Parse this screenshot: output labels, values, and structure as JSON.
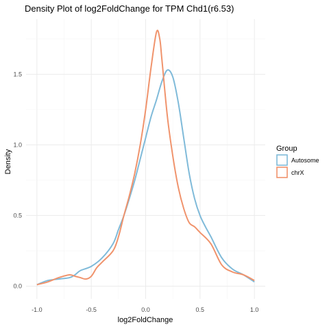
{
  "chart_data": {
    "type": "line",
    "title": "Density Plot of log2FoldChange for TPM Chd1(r6.53)",
    "xlabel": "log2FoldChange",
    "ylabel": "Density",
    "xlim": [
      -1.0,
      1.0
    ],
    "ylim": [
      0.0,
      1.8
    ],
    "xticks": [
      "-1.0",
      "-0.5",
      "0.0",
      "0.5",
      "1.0"
    ],
    "yticks": [
      "0.0",
      "0.5",
      "1.0",
      "1.5"
    ],
    "grid": true,
    "legend": {
      "title": "Group",
      "position": "right"
    },
    "series": [
      {
        "name": "Autosome",
        "color": "#7fbad9",
        "points": [
          [
            -1.0,
            0.01
          ],
          [
            -0.9,
            0.04
          ],
          [
            -0.8,
            0.05
          ],
          [
            -0.7,
            0.06
          ],
          [
            -0.65,
            0.08
          ],
          [
            -0.6,
            0.11
          ],
          [
            -0.5,
            0.14
          ],
          [
            -0.4,
            0.2
          ],
          [
            -0.3,
            0.3
          ],
          [
            -0.25,
            0.4
          ],
          [
            -0.2,
            0.5
          ],
          [
            -0.15,
            0.62
          ],
          [
            -0.1,
            0.75
          ],
          [
            -0.05,
            0.9
          ],
          [
            0.0,
            1.05
          ],
          [
            0.05,
            1.2
          ],
          [
            0.1,
            1.32
          ],
          [
            0.15,
            1.45
          ],
          [
            0.2,
            1.53
          ],
          [
            0.25,
            1.48
          ],
          [
            0.3,
            1.3
          ],
          [
            0.35,
            1.05
          ],
          [
            0.4,
            0.8
          ],
          [
            0.45,
            0.62
          ],
          [
            0.5,
            0.5
          ],
          [
            0.55,
            0.42
          ],
          [
            0.6,
            0.35
          ],
          [
            0.7,
            0.2
          ],
          [
            0.8,
            0.12
          ],
          [
            0.9,
            0.08
          ],
          [
            1.0,
            0.03
          ]
        ]
      },
      {
        "name": "chrX",
        "color": "#f0936c",
        "points": [
          [
            -1.0,
            0.01
          ],
          [
            -0.9,
            0.03
          ],
          [
            -0.8,
            0.06
          ],
          [
            -0.7,
            0.08
          ],
          [
            -0.65,
            0.07
          ],
          [
            -0.6,
            0.06
          ],
          [
            -0.55,
            0.05
          ],
          [
            -0.5,
            0.07
          ],
          [
            -0.45,
            0.13
          ],
          [
            -0.4,
            0.17
          ],
          [
            -0.3,
            0.25
          ],
          [
            -0.25,
            0.35
          ],
          [
            -0.2,
            0.5
          ],
          [
            -0.15,
            0.64
          ],
          [
            -0.1,
            0.8
          ],
          [
            -0.05,
            1.0
          ],
          [
            0.0,
            1.25
          ],
          [
            0.05,
            1.55
          ],
          [
            0.1,
            1.8
          ],
          [
            0.13,
            1.75
          ],
          [
            0.15,
            1.6
          ],
          [
            0.2,
            1.2
          ],
          [
            0.25,
            0.92
          ],
          [
            0.3,
            0.7
          ],
          [
            0.35,
            0.55
          ],
          [
            0.4,
            0.45
          ],
          [
            0.45,
            0.42
          ],
          [
            0.5,
            0.38
          ],
          [
            0.6,
            0.3
          ],
          [
            0.7,
            0.15
          ],
          [
            0.8,
            0.1
          ],
          [
            0.9,
            0.08
          ],
          [
            1.0,
            0.04
          ]
        ]
      }
    ]
  }
}
